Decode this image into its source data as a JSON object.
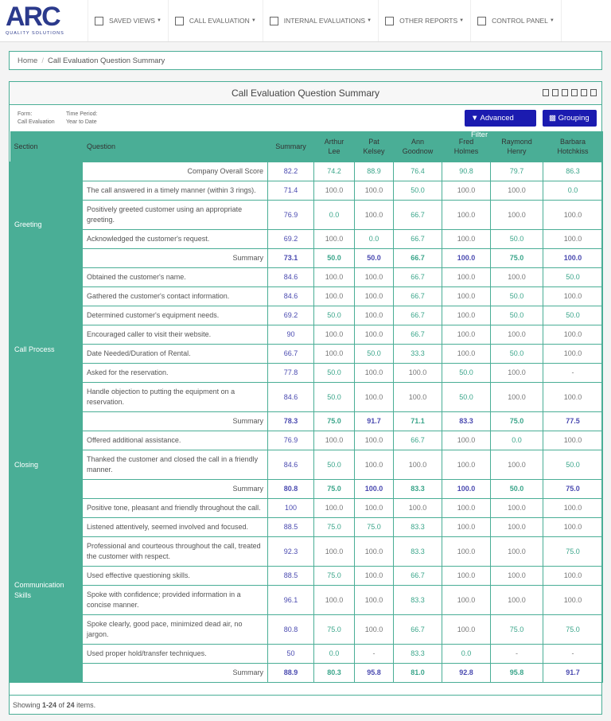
{
  "nav": {
    "logo": "ARC",
    "tagline": "QUALITY SOLUTIONS",
    "items": [
      "SAVED VIEWS",
      "CALL EVALUATION",
      "INTERNAL EVALUATIONS",
      "OTHER REPORTS",
      "CONTROL PANEL"
    ]
  },
  "breadcrumb": {
    "home": "Home",
    "separator": "/",
    "current": "Call Evaluation Question Summary"
  },
  "panel": {
    "title": "Call Evaluation Question Summary",
    "filters": [
      {
        "label": "Form:",
        "value": "Call Evaluation"
      },
      {
        "label": "Time Period:",
        "value": "Year to Date"
      }
    ],
    "buttons": [
      "Advanced Filter",
      "Grouping"
    ]
  },
  "table": {
    "columns": [
      "Section",
      "Question",
      "Summary",
      "Arthur Lee",
      "Pat Kelsey",
      "Ann Goodnow",
      "Fred Holmes",
      "Raymond Henry",
      "Barbara Hotchkiss"
    ],
    "overall": {
      "label": "Company Overall Score",
      "values": [
        "82.2",
        "74.2",
        "88.9",
        "76.4",
        "90.8",
        "79.7",
        "86.3"
      ]
    },
    "summary_label": "Summary",
    "groups": [
      {
        "section": "Greeting",
        "rows": [
          {
            "question": "The call answered in a timely manner (within 3 rings).",
            "values": [
              "71.4",
              "100.0",
              "100.0",
              "50.0",
              "100.0",
              "100.0",
              "0.0"
            ]
          },
          {
            "question": "Positively greeted customer using an appropriate greeting.",
            "values": [
              "76.9",
              "0.0",
              "100.0",
              "66.7",
              "100.0",
              "100.0",
              "100.0"
            ]
          },
          {
            "question": "Acknowledged the customer's request.",
            "values": [
              "69.2",
              "100.0",
              "0.0",
              "66.7",
              "100.0",
              "50.0",
              "100.0"
            ]
          }
        ],
        "summary": [
          "73.1",
          "50.0",
          "50.0",
          "66.7",
          "100.0",
          "75.0",
          "100.0"
        ]
      },
      {
        "section": "Call Process",
        "rows": [
          {
            "question": "Obtained the customer's name.",
            "values": [
              "84.6",
              "100.0",
              "100.0",
              "66.7",
              "100.0",
              "100.0",
              "50.0"
            ]
          },
          {
            "question": "Gathered the customer's contact information.",
            "values": [
              "84.6",
              "100.0",
              "100.0",
              "66.7",
              "100.0",
              "50.0",
              "100.0"
            ]
          },
          {
            "question": "Determined customer's equipment needs.",
            "values": [
              "69.2",
              "50.0",
              "100.0",
              "66.7",
              "100.0",
              "50.0",
              "50.0"
            ]
          },
          {
            "question": "Encouraged caller to visit their website.",
            "values": [
              "90",
              "100.0",
              "100.0",
              "66.7",
              "100.0",
              "100.0",
              "100.0"
            ]
          },
          {
            "question": "Date Needed/Duration of Rental.",
            "values": [
              "66.7",
              "100.0",
              "50.0",
              "33.3",
              "100.0",
              "50.0",
              "100.0"
            ]
          },
          {
            "question": "Asked for the reservation.",
            "values": [
              "77.8",
              "50.0",
              "100.0",
              "100.0",
              "50.0",
              "100.0",
              "-"
            ]
          },
          {
            "question": "Handle objection to putting the equipment on a reservation.",
            "values": [
              "84.6",
              "50.0",
              "100.0",
              "100.0",
              "50.0",
              "100.0",
              "100.0"
            ]
          }
        ],
        "summary": [
          "78.3",
          "75.0",
          "91.7",
          "71.1",
          "83.3",
          "75.0",
          "77.5"
        ]
      },
      {
        "section": "Closing",
        "rows": [
          {
            "question": "Offered additional assistance.",
            "values": [
              "76.9",
              "100.0",
              "100.0",
              "66.7",
              "100.0",
              "0.0",
              "100.0"
            ]
          },
          {
            "question": "Thanked the customer and closed the call in a friendly manner.",
            "values": [
              "84.6",
              "50.0",
              "100.0",
              "100.0",
              "100.0",
              "100.0",
              "50.0"
            ]
          }
        ],
        "summary": [
          "80.8",
          "75.0",
          "100.0",
          "83.3",
          "100.0",
          "50.0",
          "75.0"
        ]
      },
      {
        "section": "Communication Skills",
        "rows": [
          {
            "question": "Positive tone, pleasant and friendly throughout the call.",
            "values": [
              "100",
              "100.0",
              "100.0",
              "100.0",
              "100.0",
              "100.0",
              "100.0"
            ]
          },
          {
            "question": "Listened attentively, seemed involved and focused.",
            "values": [
              "88.5",
              "75.0",
              "75.0",
              "83.3",
              "100.0",
              "100.0",
              "100.0"
            ]
          },
          {
            "question": "Professional and courteous throughout the call, treated the customer with respect.",
            "values": [
              "92.3",
              "100.0",
              "100.0",
              "83.3",
              "100.0",
              "100.0",
              "75.0"
            ]
          },
          {
            "question": "Used effective questioning skills.",
            "values": [
              "88.5",
              "75.0",
              "100.0",
              "66.7",
              "100.0",
              "100.0",
              "100.0"
            ]
          },
          {
            "question": "Spoke with confidence; provided information in a concise manner.",
            "values": [
              "96.1",
              "100.0",
              "100.0",
              "83.3",
              "100.0",
              "100.0",
              "100.0"
            ]
          },
          {
            "question": "Spoke clearly, good pace, minimized dead air, no jargon.",
            "values": [
              "80.8",
              "75.0",
              "100.0",
              "66.7",
              "100.0",
              "75.0",
              "75.0"
            ]
          },
          {
            "question": "Used proper hold/transfer techniques.",
            "values": [
              "50",
              "0.0",
              "-",
              "83.3",
              "0.0",
              "-",
              "-"
            ]
          }
        ],
        "summary": [
          "88.9",
          "80.3",
          "95.8",
          "81.0",
          "92.8",
          "95.8",
          "91.7"
        ]
      }
    ]
  },
  "footer": {
    "parts": [
      "Showing ",
      "1-24",
      " of ",
      "24",
      " items."
    ]
  }
}
